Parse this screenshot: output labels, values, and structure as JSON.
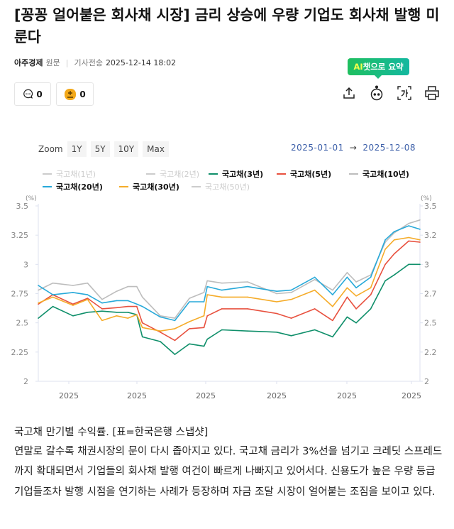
{
  "article": {
    "title": "[꽁꽁 얼어붙은 회사채 시장] 금리 상승에 우량 기업도 회사채 발행 미룬다",
    "source": "아주경제",
    "original_label": "원문",
    "sent_label": "기사전송",
    "timestamp": "2025-12-14 18:02",
    "comment_count": "0",
    "reaction_count": "0",
    "ai_badge_prefix": "AI",
    "ai_badge_rest": "챗으로 요약",
    "tools": [
      "share-icon",
      "ai-bot-icon",
      "text-size-icon",
      "print-icon"
    ],
    "caption": "국고채 만기별 수익률. [표=한국은행 스냅샷]",
    "body": "연말로 갈수록 채권시장의 문이 다시 좁아지고 있다. 국고채 금리가 3%선을 넘기고 크레딧 스프레드까지 확대되면서 기업들의 회사채 발행 여건이 빠르게 나빠지고 있어서다. 신용도가 높은 우량 등급 기업들조차 발행 시점을 연기하는 사례가 등장하며 자금 조달 시장이 얼어붙는 조짐을 보이고 있다."
  },
  "chart_controls": {
    "zoom_label": "Zoom",
    "zoom_options": [
      "1Y",
      "5Y",
      "10Y",
      "Max"
    ],
    "range_start": "2025-01-01",
    "range_arrow": "→",
    "range_end": "2025-12-08"
  },
  "chart_data": {
    "type": "line",
    "unit_left": "(%)",
    "unit_right": "(%)",
    "ylim": [
      2,
      3.5
    ],
    "y_ticks_left": [
      "3.5",
      "3.25",
      "3",
      "2.75",
      "2.5",
      "2.25",
      "2"
    ],
    "y_ticks_right": [
      "3.5",
      "3.2",
      "3",
      "2.7",
      "2.5",
      "2.2",
      "2"
    ],
    "x_tick_labels": [
      "2025",
      "2025",
      "2025",
      "2025",
      "2025",
      "2025"
    ],
    "xlim": [
      "2025-01-01",
      "2025-12-08"
    ],
    "grid": false,
    "legend_position": "top",
    "legend": [
      {
        "name": "국고채(1년)",
        "color": "#cccccc",
        "active": false
      },
      {
        "name": "국고채(2년)",
        "color": "#cccccc",
        "active": false
      },
      {
        "name": "국고채(3년)",
        "color": "#0f8f6a",
        "active": true
      },
      {
        "name": "국고채(5년)",
        "color": "#e8513f",
        "active": true
      },
      {
        "name": "국고채(10년)",
        "color": "#bdbdbd",
        "active": true
      },
      {
        "name": "국고채(20년)",
        "color": "#27a9d9",
        "active": true
      },
      {
        "name": "국고채(30년)",
        "color": "#f5ac2a",
        "active": true
      },
      {
        "name": "국고채(50년)",
        "color": "#cccccc",
        "active": false
      }
    ],
    "x": [
      "2025-01-01",
      "2025-01-14",
      "2025-02-01",
      "2025-02-14",
      "2025-02-27",
      "2025-03-12",
      "2025-03-22",
      "2025-03-30",
      "2025-04-04",
      "2025-04-20",
      "2025-05-03",
      "2025-05-16",
      "2025-05-29",
      "2025-06-01",
      "2025-06-14",
      "2025-07-07",
      "2025-08-02",
      "2025-08-15",
      "2025-09-05",
      "2025-09-21",
      "2025-10-04",
      "2025-10-12",
      "2025-10-25",
      "2025-11-07",
      "2025-11-15",
      "2025-11-28",
      "2025-12-08"
    ],
    "series": [
      {
        "name": "국고채(10년)",
        "color": "#bdbdbd",
        "values": [
          2.78,
          2.84,
          2.82,
          2.84,
          2.7,
          2.77,
          2.81,
          2.81,
          2.72,
          2.56,
          2.54,
          2.71,
          2.76,
          2.86,
          2.84,
          2.85,
          2.75,
          2.76,
          2.87,
          2.78,
          2.93,
          2.85,
          2.91,
          3.19,
          3.27,
          3.35,
          3.38
        ]
      },
      {
        "name": "국고채(3년)",
        "color": "#0f8f6a",
        "values": [
          2.54,
          2.64,
          2.56,
          2.59,
          2.6,
          2.59,
          2.59,
          2.57,
          2.38,
          2.34,
          2.23,
          2.32,
          2.3,
          2.36,
          2.44,
          2.43,
          2.42,
          2.39,
          2.44,
          2.38,
          2.55,
          2.5,
          2.62,
          2.86,
          2.91,
          3.0,
          3.0
        ]
      },
      {
        "name": "국고채(5년)",
        "color": "#e8513f",
        "values": [
          2.66,
          2.74,
          2.66,
          2.71,
          2.62,
          2.63,
          2.64,
          2.64,
          2.5,
          2.42,
          2.35,
          2.45,
          2.46,
          2.56,
          2.62,
          2.62,
          2.58,
          2.54,
          2.62,
          2.52,
          2.72,
          2.62,
          2.74,
          3.0,
          3.09,
          3.2,
          3.19
        ]
      },
      {
        "name": "국고채(30년)",
        "color": "#f5ac2a",
        "values": [
          2.67,
          2.72,
          2.65,
          2.7,
          2.52,
          2.56,
          2.54,
          2.57,
          2.46,
          2.43,
          2.45,
          2.51,
          2.56,
          2.74,
          2.72,
          2.72,
          2.68,
          2.7,
          2.78,
          2.64,
          2.8,
          2.73,
          2.8,
          3.13,
          3.21,
          3.23,
          3.21
        ]
      },
      {
        "name": "국고채(20년)",
        "color": "#27a9d9",
        "values": [
          2.82,
          2.74,
          2.76,
          2.74,
          2.67,
          2.69,
          2.69,
          2.66,
          2.64,
          2.55,
          2.52,
          2.68,
          2.68,
          2.81,
          2.78,
          2.81,
          2.77,
          2.78,
          2.89,
          2.74,
          2.89,
          2.8,
          2.89,
          3.21,
          3.28,
          3.33,
          3.3
        ]
      }
    ]
  }
}
